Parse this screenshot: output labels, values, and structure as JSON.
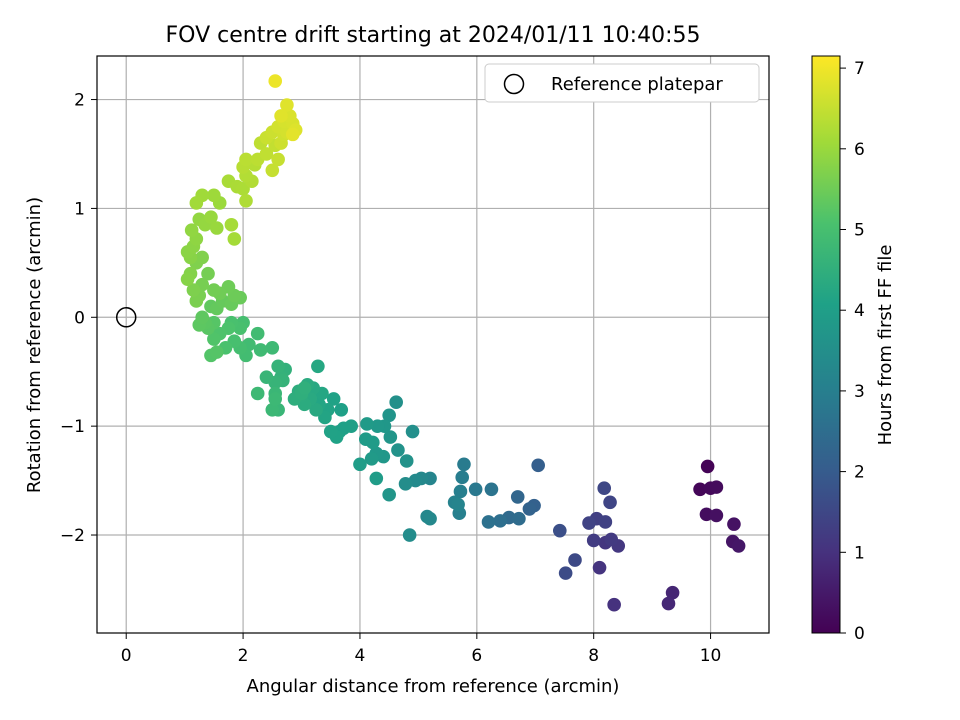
{
  "chart_data": {
    "type": "scatter",
    "title": "FOV centre drift starting at 2024/01/11 10:40:55",
    "xlabel": "Angular distance from reference (arcmin)",
    "ylabel": "Rotation from reference (arcmin)",
    "xlim": [
      -0.5,
      11.0
    ],
    "ylim": [
      -2.9,
      2.4
    ],
    "xticks": [
      0,
      2,
      4,
      6,
      8,
      10
    ],
    "yticks": [
      -2,
      -1,
      0,
      1,
      2
    ],
    "xtick_labels": [
      "0",
      "2",
      "4",
      "6",
      "8",
      "10"
    ],
    "ytick_labels": [
      "−2",
      "−1",
      "0",
      "1",
      "2"
    ],
    "grid": true,
    "legend": {
      "location": "top-right",
      "entries": [
        "Reference platepar"
      ]
    },
    "reference_point": {
      "x": 0,
      "y": 0
    },
    "colorbar": {
      "label": "Hours from first FF file",
      "colormap": "viridis",
      "range": [
        0,
        7.15
      ],
      "ticks": [
        0,
        1,
        2,
        3,
        4,
        5,
        6,
        7
      ],
      "tick_labels": [
        "0",
        "1",
        "2",
        "3",
        "4",
        "5",
        "6",
        "7"
      ]
    },
    "points": [
      [
        9.95,
        -1.37,
        0.05
      ],
      [
        9.82,
        -1.58,
        0.1
      ],
      [
        10.0,
        -1.57,
        0.15
      ],
      [
        10.1,
        -1.56,
        0.2
      ],
      [
        9.93,
        -1.81,
        0.25
      ],
      [
        10.1,
        -1.82,
        0.3
      ],
      [
        10.4,
        -1.9,
        0.35
      ],
      [
        10.38,
        -2.06,
        0.4
      ],
      [
        10.48,
        -2.1,
        0.45
      ],
      [
        9.35,
        -2.53,
        0.75
      ],
      [
        9.28,
        -2.63,
        0.8
      ],
      [
        8.35,
        -2.64,
        1.0
      ],
      [
        8.1,
        -2.3,
        1.05
      ],
      [
        8.2,
        -2.07,
        1.1
      ],
      [
        8.42,
        -2.1,
        1.15
      ],
      [
        8.3,
        -2.04,
        1.2
      ],
      [
        8.0,
        -2.05,
        1.25
      ],
      [
        8.05,
        -1.85,
        1.3
      ],
      [
        8.2,
        -1.88,
        1.35
      ],
      [
        7.92,
        -1.89,
        1.4
      ],
      [
        8.28,
        -1.7,
        1.45
      ],
      [
        8.18,
        -1.57,
        1.5
      ],
      [
        7.68,
        -2.23,
        1.55
      ],
      [
        7.52,
        -2.35,
        1.6
      ],
      [
        7.42,
        -1.96,
        1.7
      ],
      [
        7.05,
        -1.36,
        2.1
      ],
      [
        6.98,
        -1.73,
        2.15
      ],
      [
        6.9,
        -1.76,
        2.2
      ],
      [
        6.7,
        -1.65,
        2.3
      ],
      [
        6.55,
        -1.84,
        2.4
      ],
      [
        6.72,
        -1.85,
        2.45
      ],
      [
        6.4,
        -1.87,
        2.55
      ],
      [
        6.2,
        -1.88,
        2.6
      ],
      [
        6.25,
        -1.58,
        2.7
      ],
      [
        5.98,
        -1.58,
        2.8
      ],
      [
        5.78,
        -1.35,
        2.9
      ],
      [
        5.75,
        -1.47,
        2.95
      ],
      [
        5.72,
        -1.6,
        3.0
      ],
      [
        5.7,
        -1.8,
        3.05
      ],
      [
        5.62,
        -1.7,
        3.1
      ],
      [
        5.68,
        -1.72,
        3.15
      ],
      [
        5.2,
        -1.48,
        3.2
      ],
      [
        5.15,
        -1.83,
        3.25
      ],
      [
        5.2,
        -1.85,
        3.3
      ],
      [
        5.05,
        -1.48,
        3.3
      ],
      [
        4.95,
        -1.5,
        3.35
      ],
      [
        4.85,
        -2.0,
        3.4
      ],
      [
        4.78,
        -1.53,
        3.45
      ],
      [
        4.9,
        -1.05,
        3.5
      ],
      [
        4.62,
        -0.78,
        3.55
      ],
      [
        4.8,
        -1.32,
        3.6
      ],
      [
        4.65,
        -1.22,
        3.6
      ],
      [
        4.5,
        -0.9,
        3.65
      ],
      [
        4.5,
        -1.63,
        3.7
      ],
      [
        4.52,
        -1.1,
        3.7
      ],
      [
        4.4,
        -1.28,
        3.75
      ],
      [
        4.42,
        -1.0,
        3.75
      ],
      [
        4.28,
        -1.25,
        3.8
      ],
      [
        4.3,
        -1.0,
        3.8
      ],
      [
        4.12,
        -0.98,
        3.85
      ],
      [
        4.2,
        -1.3,
        3.85
      ],
      [
        4.1,
        -1.12,
        3.9
      ],
      [
        4.22,
        -1.15,
        3.9
      ],
      [
        4.28,
        -1.48,
        3.92
      ],
      [
        4.0,
        -1.35,
        3.95
      ],
      [
        3.85,
        -1.0,
        4.0
      ],
      [
        3.65,
        -1.05,
        4.0
      ],
      [
        3.68,
        -0.85,
        4.05
      ],
      [
        3.72,
        -1.02,
        4.05
      ],
      [
        3.55,
        -0.75,
        4.1
      ],
      [
        3.6,
        -1.1,
        4.1
      ],
      [
        3.5,
        -1.05,
        4.12
      ],
      [
        3.45,
        -0.85,
        4.15
      ],
      [
        3.4,
        -0.92,
        4.18
      ],
      [
        3.3,
        -0.8,
        4.2
      ],
      [
        3.35,
        -0.7,
        4.22
      ],
      [
        3.28,
        -0.45,
        4.25
      ],
      [
        3.2,
        -0.65,
        4.28
      ],
      [
        3.25,
        -0.85,
        4.3
      ],
      [
        3.15,
        -0.75,
        4.32
      ],
      [
        3.1,
        -0.62,
        4.35
      ],
      [
        3.05,
        -0.8,
        4.38
      ],
      [
        3.0,
        -0.72,
        4.4
      ],
      [
        2.95,
        -0.68,
        4.42
      ],
      [
        2.88,
        -0.75,
        4.45
      ],
      [
        3.0,
        -0.7,
        4.48
      ],
      [
        3.05,
        -0.65,
        4.5
      ],
      [
        2.72,
        -0.48,
        4.55
      ],
      [
        2.65,
        -0.55,
        4.58
      ],
      [
        2.6,
        -0.45,
        4.6
      ],
      [
        2.68,
        -0.58,
        4.62
      ],
      [
        2.55,
        -0.6,
        4.65
      ],
      [
        2.4,
        -0.55,
        4.68
      ],
      [
        2.6,
        -0.85,
        4.7
      ],
      [
        2.55,
        -0.7,
        4.72
      ],
      [
        2.5,
        -0.85,
        4.75
      ],
      [
        2.55,
        -0.75,
        4.78
      ],
      [
        2.25,
        -0.7,
        4.8
      ],
      [
        2.5,
        -0.28,
        4.82
      ],
      [
        2.3,
        -0.3,
        4.85
      ],
      [
        2.25,
        -0.15,
        4.88
      ],
      [
        2.1,
        -0.25,
        4.9
      ],
      [
        2.05,
        -0.35,
        4.92
      ],
      [
        1.95,
        -0.28,
        4.95
      ],
      [
        2.0,
        -0.05,
        4.98
      ],
      [
        1.85,
        -0.22,
        5.0
      ],
      [
        1.95,
        -0.1,
        5.02
      ],
      [
        1.8,
        -0.05,
        5.05
      ],
      [
        1.7,
        -0.28,
        5.08
      ],
      [
        1.75,
        -0.1,
        5.1
      ],
      [
        1.6,
        -0.15,
        5.12
      ],
      [
        1.5,
        -0.2,
        5.15
      ],
      [
        1.45,
        -0.35,
        5.18
      ],
      [
        1.55,
        -0.32,
        5.2
      ],
      [
        1.5,
        -0.05,
        5.22
      ],
      [
        1.4,
        -0.1,
        5.25
      ],
      [
        1.35,
        -0.05,
        5.28
      ],
      [
        1.25,
        -0.07,
        5.3
      ],
      [
        1.3,
        0.0,
        5.32
      ],
      [
        1.45,
        0.1,
        5.35
      ],
      [
        1.55,
        0.08,
        5.38
      ],
      [
        1.65,
        0.15,
        5.4
      ],
      [
        1.8,
        0.12,
        5.42
      ],
      [
        1.95,
        0.18,
        5.45
      ],
      [
        1.85,
        0.2,
        5.48
      ],
      [
        1.75,
        0.28,
        5.5
      ],
      [
        1.6,
        0.22,
        5.52
      ],
      [
        1.5,
        0.25,
        5.55
      ],
      [
        1.4,
        0.4,
        5.58
      ],
      [
        1.3,
        0.3,
        5.6
      ],
      [
        1.25,
        0.2,
        5.62
      ],
      [
        1.2,
        0.15,
        5.65
      ],
      [
        1.15,
        0.25,
        5.68
      ],
      [
        1.2,
        0.5,
        5.7
      ],
      [
        1.3,
        0.55,
        5.72
      ],
      [
        1.1,
        0.4,
        5.75
      ],
      [
        1.05,
        0.35,
        5.78
      ],
      [
        1.1,
        0.55,
        5.8
      ],
      [
        1.05,
        0.6,
        5.82
      ],
      [
        1.15,
        0.65,
        5.85
      ],
      [
        1.2,
        0.72,
        5.88
      ],
      [
        1.12,
        0.8,
        5.9
      ],
      [
        1.25,
        0.9,
        5.92
      ],
      [
        1.35,
        0.85,
        5.95
      ],
      [
        1.45,
        0.92,
        5.98
      ],
      [
        1.55,
        0.82,
        6.0
      ],
      [
        1.6,
        1.05,
        6.02
      ],
      [
        1.5,
        1.12,
        6.05
      ],
      [
        1.3,
        1.12,
        6.08
      ],
      [
        1.2,
        1.05,
        6.1
      ],
      [
        1.85,
        0.72,
        6.12
      ],
      [
        1.8,
        0.85,
        6.15
      ],
      [
        1.75,
        1.25,
        6.18
      ],
      [
        1.9,
        1.2,
        6.2
      ],
      [
        2.0,
        1.18,
        6.22
      ],
      [
        2.05,
        1.07,
        6.25
      ],
      [
        2.15,
        1.25,
        6.28
      ],
      [
        2.05,
        1.3,
        6.3
      ],
      [
        2.2,
        1.4,
        6.32
      ],
      [
        2.0,
        1.38,
        6.35
      ],
      [
        2.05,
        1.45,
        6.38
      ],
      [
        2.25,
        1.45,
        6.4
      ],
      [
        2.3,
        1.6,
        6.42
      ],
      [
        2.4,
        1.5,
        6.45
      ],
      [
        2.55,
        1.58,
        6.48
      ],
      [
        2.5,
        1.35,
        6.5
      ],
      [
        2.6,
        1.45,
        6.52
      ],
      [
        2.4,
        1.65,
        6.55
      ],
      [
        2.5,
        1.7,
        6.58
      ],
      [
        2.65,
        1.6,
        6.6
      ],
      [
        2.7,
        1.68,
        6.62
      ],
      [
        2.6,
        1.75,
        6.65
      ],
      [
        2.75,
        1.7,
        6.68
      ],
      [
        2.7,
        1.8,
        6.7
      ],
      [
        2.85,
        1.78,
        6.72
      ],
      [
        2.8,
        1.85,
        6.75
      ],
      [
        2.9,
        1.72,
        6.78
      ],
      [
        2.75,
        1.95,
        6.8
      ],
      [
        2.65,
        1.85,
        6.82
      ],
      [
        2.85,
        1.68,
        6.85
      ],
      [
        2.55,
        2.17,
        6.95
      ]
    ]
  }
}
